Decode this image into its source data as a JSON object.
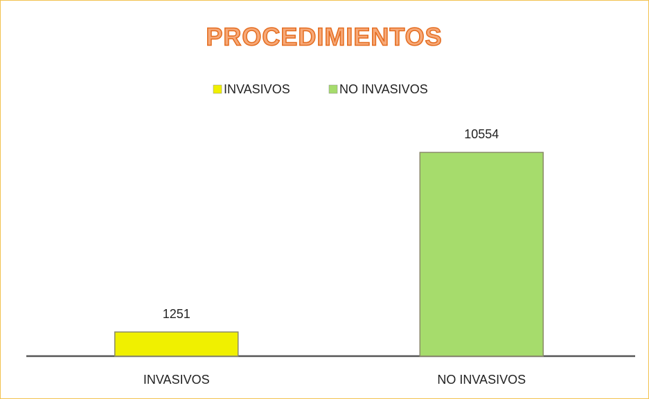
{
  "chart_data": {
    "type": "bar",
    "title": "PROCEDIMIENTOS",
    "categories": [
      "INVASIVOS",
      "NO INVASIVOS"
    ],
    "series": [
      {
        "name": "INVASIVOS",
        "color": "#f0f000",
        "values": [
          1251,
          null
        ]
      },
      {
        "name": "NO INVASIVOS",
        "color": "#a6dc6c",
        "values": [
          null,
          10554
        ]
      }
    ],
    "ylim": [
      0,
      12000
    ]
  }
}
